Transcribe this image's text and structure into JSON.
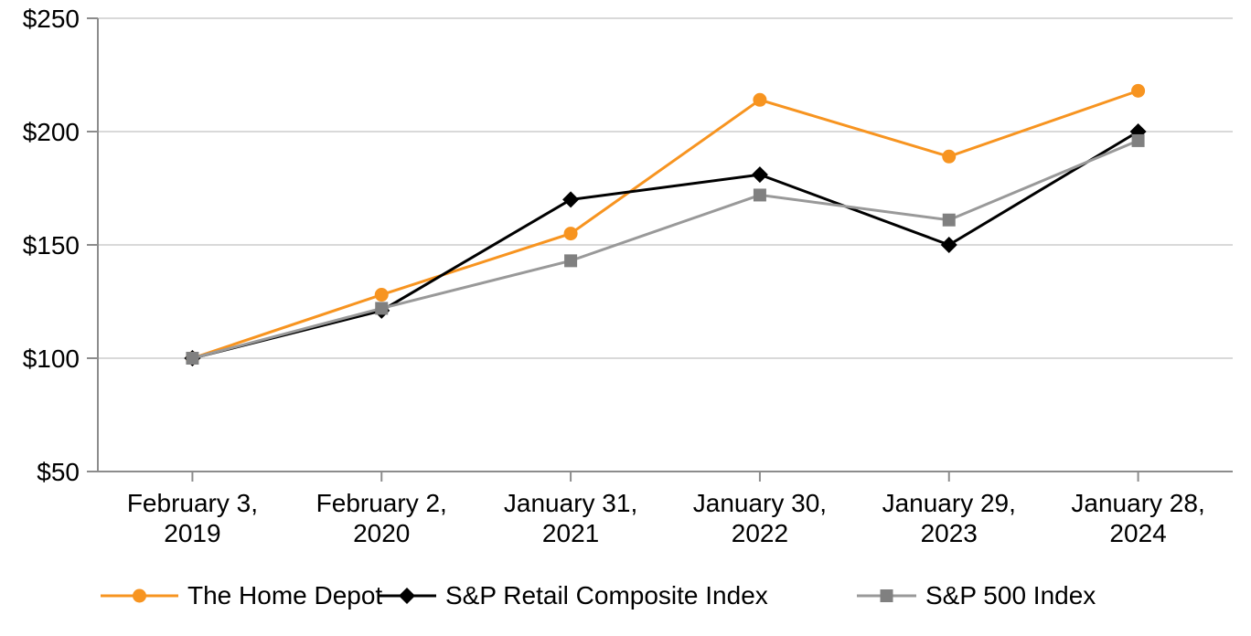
{
  "chart_data": {
    "type": "line",
    "title": "",
    "categories": [
      "February 3, 2019",
      "February 2, 2020",
      "January 31, 2021",
      "January 30, 2022",
      "January 29, 2023",
      "January 28, 2024"
    ],
    "series": [
      {
        "name": "The Home Depot",
        "color": "#F79420",
        "marker": "circle",
        "values": [
          100,
          128,
          155,
          214,
          189,
          218
        ]
      },
      {
        "name": "S&P Retail Composite Index",
        "color": "#000000",
        "marker": "diamond",
        "values": [
          100,
          121,
          170,
          181,
          150,
          200
        ]
      },
      {
        "name": "S&P 500 Index",
        "color": "#999999",
        "marker_color": "#808080",
        "marker": "square",
        "values": [
          100,
          122,
          143,
          172,
          161,
          196
        ]
      }
    ],
    "y_ticks": [
      50,
      100,
      150,
      200,
      250
    ],
    "y_tick_labels": [
      "$50",
      "$100",
      "$150",
      "$200",
      "$250"
    ],
    "ylim": [
      50,
      250
    ],
    "grid": true,
    "legend_position": "bottom",
    "colors": {
      "axis": "#8C8C8C",
      "gridline": "#D9D9D9",
      "text": "#000000",
      "background": "#FFFFFF"
    }
  }
}
